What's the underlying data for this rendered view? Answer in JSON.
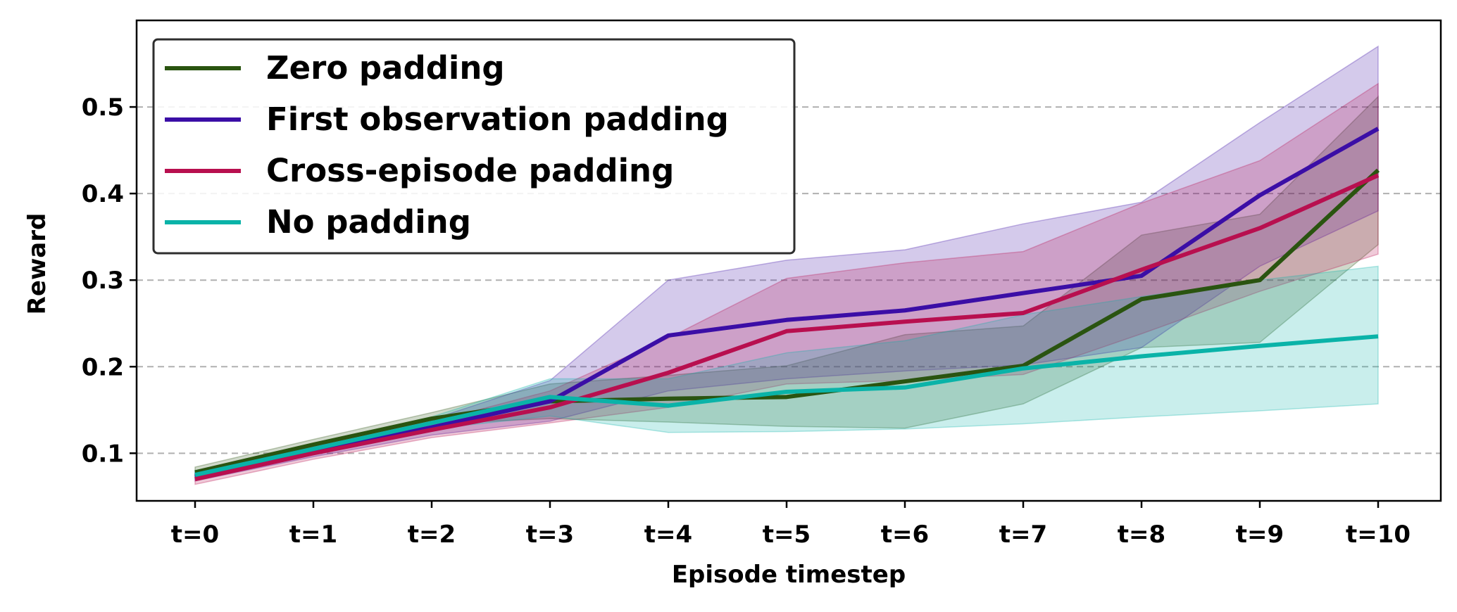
{
  "chart_data": {
    "type": "line",
    "xlabel": "Episode timestep",
    "ylabel": "Reward",
    "categories": [
      "t=0",
      "t=1",
      "t=2",
      "t=3",
      "t=4",
      "t=5",
      "t=6",
      "t=7",
      "t=8",
      "t=9",
      "t=10"
    ],
    "ylim": [
      0.045,
      0.6
    ],
    "yticks": [
      0.1,
      0.2,
      0.3,
      0.4,
      0.5
    ],
    "ytick_labels": [
      "0.1",
      "0.2",
      "0.3",
      "0.4",
      "0.5"
    ],
    "grid": "horizontal-dashed",
    "legend_position": "top-left",
    "series": [
      {
        "name": "Zero padding",
        "color": "#2a5410",
        "values": [
          0.078,
          0.11,
          0.14,
          0.16,
          0.163,
          0.165,
          0.183,
          0.201,
          0.278,
          0.3,
          0.427
        ],
        "lower": [
          0.072,
          0.105,
          0.134,
          0.14,
          0.136,
          0.131,
          0.129,
          0.157,
          0.222,
          0.228,
          0.341
        ],
        "upper": [
          0.084,
          0.116,
          0.147,
          0.18,
          0.19,
          0.201,
          0.237,
          0.247,
          0.352,
          0.376,
          0.512
        ]
      },
      {
        "name": "First observation padding",
        "color": "#3b0ea6",
        "values": [
          0.073,
          0.102,
          0.13,
          0.16,
          0.236,
          0.254,
          0.265,
          0.285,
          0.305,
          0.398,
          0.475
        ],
        "lower": [
          0.068,
          0.096,
          0.121,
          0.137,
          0.172,
          0.186,
          0.195,
          0.202,
          0.222,
          0.316,
          0.38
        ],
        "upper": [
          0.078,
          0.108,
          0.139,
          0.184,
          0.3,
          0.323,
          0.335,
          0.365,
          0.39,
          0.482,
          0.57
        ]
      },
      {
        "name": "Cross-episode padding",
        "color": "#b80f4f",
        "values": [
          0.07,
          0.1,
          0.127,
          0.153,
          0.193,
          0.241,
          0.252,
          0.262,
          0.312,
          0.36,
          0.421
        ],
        "lower": [
          0.064,
          0.093,
          0.118,
          0.135,
          0.153,
          0.18,
          0.184,
          0.191,
          0.238,
          0.287,
          0.33
        ],
        "upper": [
          0.076,
          0.107,
          0.136,
          0.172,
          0.233,
          0.302,
          0.32,
          0.333,
          0.389,
          0.438,
          0.527
        ]
      },
      {
        "name": "No padding",
        "color": "#0ab3a8",
        "values": [
          0.075,
          0.105,
          0.135,
          0.165,
          0.155,
          0.171,
          0.176,
          0.198,
          0.212,
          0.224,
          0.235
        ],
        "lower": [
          0.07,
          0.1,
          0.128,
          0.143,
          0.124,
          0.125,
          0.128,
          0.134,
          0.142,
          0.149,
          0.157
        ],
        "upper": [
          0.08,
          0.111,
          0.142,
          0.186,
          0.186,
          0.216,
          0.23,
          0.26,
          0.281,
          0.3,
          0.316
        ]
      }
    ]
  }
}
